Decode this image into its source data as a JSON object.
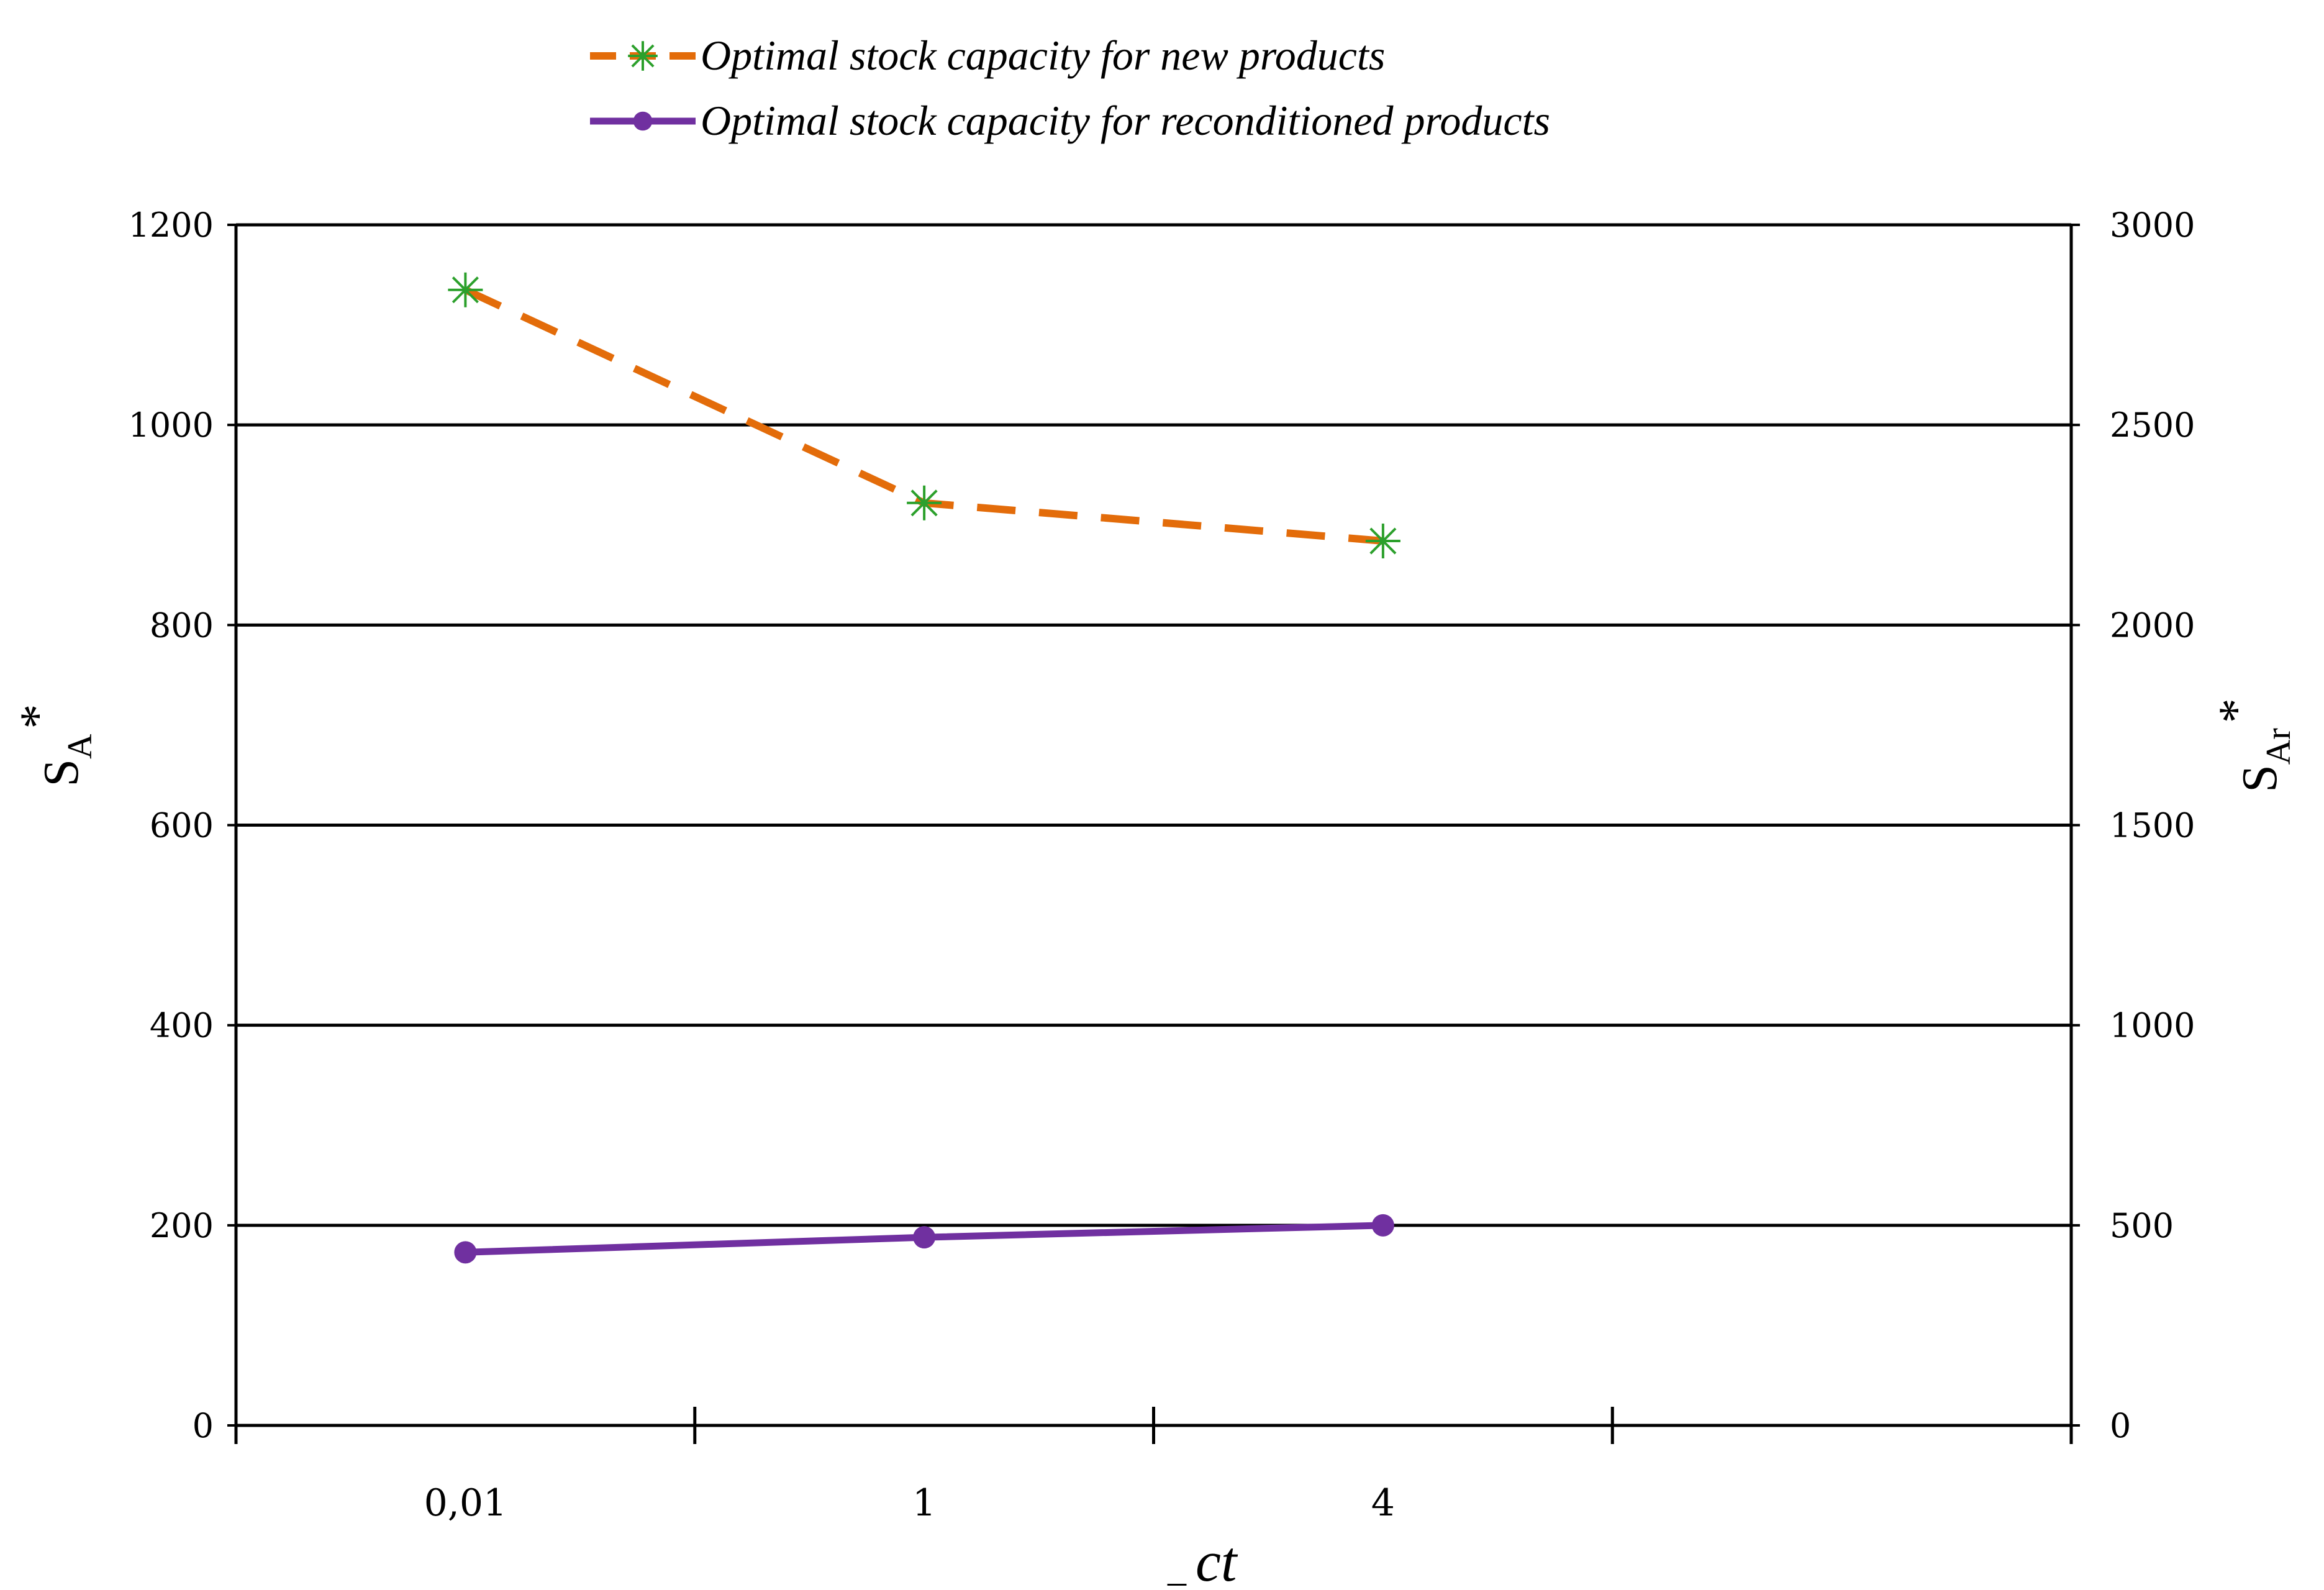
{
  "chart_data": {
    "type": "line",
    "categories": [
      "0,01",
      "1",
      "4"
    ],
    "xlabel_prefix": "_",
    "xlabel": "ct",
    "y_left": {
      "label_main": "S",
      "label_sub": "A",
      "label_sup": "*",
      "ylim": [
        0,
        1200
      ],
      "ticks": [
        "0",
        "200",
        "400",
        "600",
        "800",
        "1000",
        "1200"
      ]
    },
    "y_right": {
      "label_main": "S",
      "label_sub": "Ar",
      "label_sup": "*",
      "ylim": [
        0,
        3000
      ],
      "ticks": [
        "0",
        "500",
        "1000",
        "1500",
        "2000",
        "2500",
        "3000"
      ]
    },
    "grid": true,
    "legend_position": "top-center",
    "series": [
      {
        "name": "Optimal stock capacity for new products",
        "axis": "left",
        "values": [
          1135,
          922,
          884
        ],
        "color": "#e36c0a",
        "marker_color": "#2ca02c",
        "line_style": "dashed",
        "marker": "asterisk"
      },
      {
        "name": "Optimal stock capacity for reconditioned products",
        "axis": "left",
        "values": [
          173,
          188,
          200
        ],
        "color": "#7030a0",
        "marker_color": "#7030a0",
        "line_style": "solid",
        "marker": "circle"
      }
    ]
  }
}
